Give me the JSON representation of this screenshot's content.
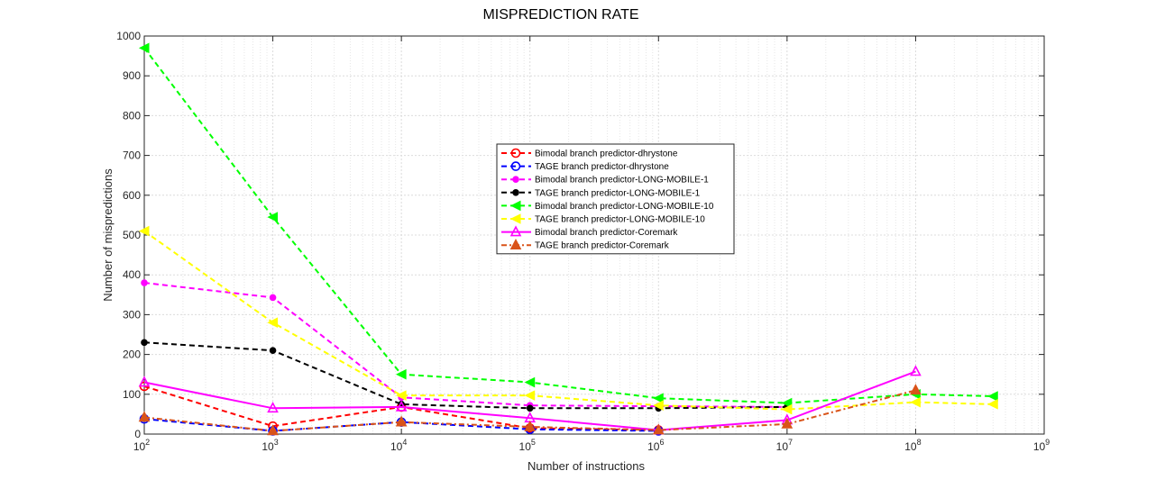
{
  "chart_data": {
    "type": "line",
    "title": "MISPREDICTION RATE",
    "xlabel": "Number of instructions",
    "ylabel": "Number of mispredictions",
    "x_scale": "log",
    "xlim": [
      100,
      1000000000
    ],
    "ylim": [
      0,
      1000
    ],
    "grid": true,
    "legend_position": "center",
    "x_ticks": [
      {
        "value": 100,
        "base": "10",
        "exp": "2"
      },
      {
        "value": 1000,
        "base": "10",
        "exp": "3"
      },
      {
        "value": 10000,
        "base": "10",
        "exp": "4"
      },
      {
        "value": 100000,
        "base": "10",
        "exp": "5"
      },
      {
        "value": 1000000,
        "base": "10",
        "exp": "6"
      },
      {
        "value": 10000000,
        "base": "10",
        "exp": "7"
      },
      {
        "value": 100000000,
        "base": "10",
        "exp": "8"
      },
      {
        "value": 1000000000,
        "base": "10",
        "exp": "9"
      }
    ],
    "y_ticks": [
      0,
      100,
      200,
      300,
      400,
      500,
      600,
      700,
      800,
      900,
      1000
    ],
    "series": [
      {
        "name": "Bimodal branch predictor-dhrystone",
        "color": "#ff0000",
        "dash": "dashed",
        "marker": "open-circle",
        "x": [
          100,
          1000,
          10000,
          100000,
          1000000
        ],
        "y": [
          120,
          20,
          68,
          15,
          10
        ]
      },
      {
        "name": "TAGE branch predictor-dhrystone",
        "color": "#0000ff",
        "dash": "dashed",
        "marker": "open-circle",
        "x": [
          100,
          1000,
          10000,
          100000,
          1000000
        ],
        "y": [
          38,
          8,
          30,
          12,
          8
        ]
      },
      {
        "name": "Bimodal branch predictor-LONG-MOBILE-1",
        "color": "#ff00ff",
        "dash": "dashed",
        "marker": "dot",
        "x": [
          100,
          1000,
          10000,
          100000,
          1000000,
          10000000
        ],
        "y": [
          380,
          343,
          92,
          72,
          70,
          68
        ]
      },
      {
        "name": "TAGE branch predictor-LONG-MOBILE-1",
        "color": "#000000",
        "dash": "dashed",
        "marker": "dot",
        "x": [
          100,
          1000,
          10000,
          100000,
          1000000,
          10000000
        ],
        "y": [
          230,
          210,
          75,
          65,
          65,
          68
        ]
      },
      {
        "name": "Bimodal branch predictor-LONG-MOBILE-10",
        "color": "#00ff00",
        "dash": "dashed",
        "marker": "left-triangle",
        "x": [
          100,
          1000,
          10000,
          100000,
          1000000,
          10000000,
          100000000,
          400000000
        ],
        "y": [
          970,
          545,
          150,
          130,
          90,
          78,
          100,
          95
        ]
      },
      {
        "name": "TAGE branch predictor-LONG-MOBILE-10",
        "color": "#ffff00",
        "dash": "dashed",
        "marker": "left-triangle",
        "x": [
          100,
          1000,
          10000,
          100000,
          1000000,
          10000000,
          100000000,
          400000000
        ],
        "y": [
          510,
          280,
          97,
          97,
          72,
          62,
          80,
          75
        ]
      },
      {
        "name": "Bimodal branch predictor-Coremark",
        "color": "#ff00ff",
        "dash": "solid",
        "marker": "up-triangle",
        "x": [
          100,
          1000,
          10000,
          100000,
          1000000,
          10000000,
          100000000
        ],
        "y": [
          130,
          65,
          68,
          40,
          10,
          35,
          157
        ]
      },
      {
        "name": "TAGE branch predictor-Coremark",
        "color": "#d95319",
        "dash": "dashdot",
        "marker": "up-triangle",
        "x": [
          100,
          1000,
          10000,
          100000,
          1000000,
          10000000,
          100000000
        ],
        "y": [
          42,
          8,
          30,
          18,
          10,
          25,
          110
        ]
      }
    ]
  }
}
